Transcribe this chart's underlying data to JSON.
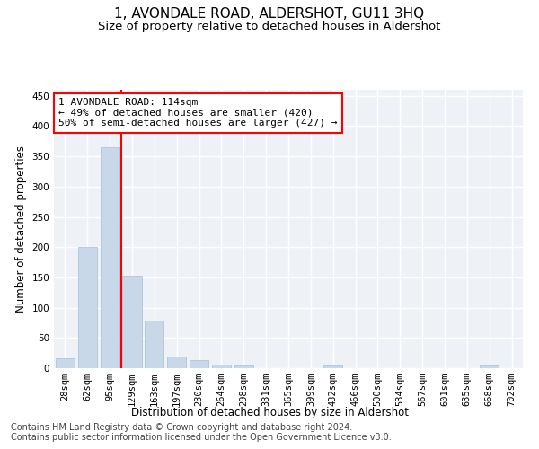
{
  "title": "1, AVONDALE ROAD, ALDERSHOT, GU11 3HQ",
  "subtitle": "Size of property relative to detached houses in Aldershot",
  "xlabel": "Distribution of detached houses by size in Aldershot",
  "ylabel": "Number of detached properties",
  "bar_color": "#c8d8e8",
  "bar_edge_color": "#a8c0d4",
  "categories": [
    "28sqm",
    "62sqm",
    "95sqm",
    "129sqm",
    "163sqm",
    "197sqm",
    "230sqm",
    "264sqm",
    "298sqm",
    "331sqm",
    "365sqm",
    "399sqm",
    "432sqm",
    "466sqm",
    "500sqm",
    "534sqm",
    "567sqm",
    "601sqm",
    "635sqm",
    "668sqm",
    "702sqm"
  ],
  "values": [
    16,
    201,
    365,
    153,
    78,
    20,
    13,
    6,
    4,
    0,
    0,
    0,
    4,
    0,
    0,
    0,
    0,
    0,
    0,
    4,
    0
  ],
  "vline_x": 2.5,
  "annotation_text": "1 AVONDALE ROAD: 114sqm\n← 49% of detached houses are smaller (420)\n50% of semi-detached houses are larger (427) →",
  "annotation_box_color": "white",
  "annotation_border_color": "red",
  "vline_color": "red",
  "ylim": [
    0,
    460
  ],
  "yticks": [
    0,
    50,
    100,
    150,
    200,
    250,
    300,
    350,
    400,
    450
  ],
  "footer_line1": "Contains HM Land Registry data © Crown copyright and database right 2024.",
  "footer_line2": "Contains public sector information licensed under the Open Government Licence v3.0.",
  "background_color": "#eef2f7",
  "grid_color": "white",
  "title_fontsize": 11,
  "subtitle_fontsize": 9.5,
  "axis_label_fontsize": 8.5,
  "tick_fontsize": 7.5,
  "annotation_fontsize": 8,
  "footer_fontsize": 7
}
